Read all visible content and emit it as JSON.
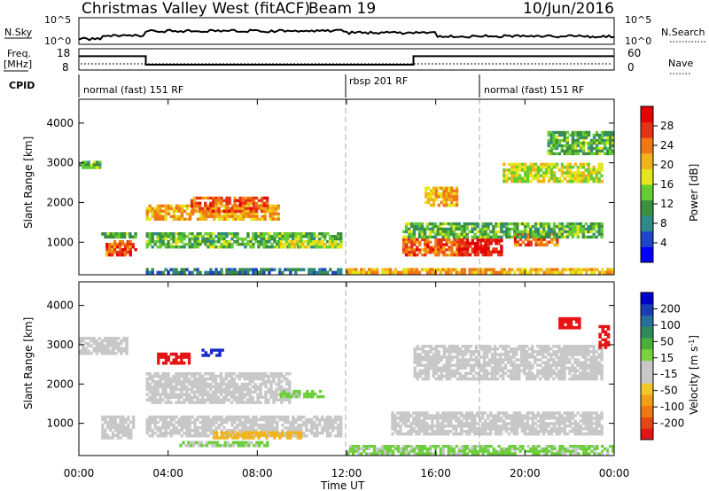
{
  "header": {
    "title": "Christmas Valley West (fitACF)",
    "beam": "Beam 19",
    "date": "10/Jun/2016"
  },
  "strip_labels": {
    "nsky": "N.Sky",
    "nsky_ticks": [
      "10^5",
      "10^0"
    ],
    "nsearch": "N.Search",
    "nsearch_ticks": [
      "10^5",
      "10^0"
    ],
    "freq": "Freq.",
    "freq_unit": "[MHz]",
    "freq_ticks": [
      "18",
      "8"
    ],
    "nave": "Nave",
    "nave_ticks": [
      "60",
      "0"
    ],
    "cpid": "CPID"
  },
  "cpid_segments": [
    {
      "label": "normal (fast) 151 RF",
      "start_hr": 0
    },
    {
      "label": "rbsp 201 RF",
      "start_hr": 12
    },
    {
      "label": "normal (fast) 151 RF",
      "start_hr": 18
    }
  ],
  "axes": {
    "xlabel": "Time UT",
    "ylabel": "Slant Range [km]",
    "x_ticks": [
      "00:00",
      "04:00",
      "08:00",
      "12:00",
      "16:00",
      "20:00",
      "00:00"
    ],
    "y_ticks": [
      "1000",
      "2000",
      "3000",
      "4000"
    ]
  },
  "colorbars": {
    "power": {
      "label": "Power [dB]",
      "ticks": [
        "4",
        "8",
        "12",
        "16",
        "20",
        "24",
        "28"
      ],
      "colors": [
        "#0000ff",
        "#1e46c8",
        "#2f8a8a",
        "#3c8f3c",
        "#66cc33",
        "#e6e619",
        "#f0b419",
        "#f07814",
        "#e63214",
        "#e60000"
      ]
    },
    "velocity": {
      "label": "Velocity [m s",
      "label_sup": "-1",
      "label_end": "]",
      "ticks": [
        "200",
        "100",
        "50",
        "15",
        "-15",
        "-50",
        "-100",
        "-200"
      ],
      "colors": [
        "#0000cc",
        "#1a3cb4",
        "#2b6e9e",
        "#2f8a5a",
        "#4caf3c",
        "#7ad23c",
        "#c8c8c8",
        "#c8c8c8",
        "#f0c828",
        "#f0a014",
        "#f07814",
        "#e64614",
        "#e61414"
      ]
    }
  },
  "chart_data": {
    "type": "heatmap",
    "x_range_hours": [
      0,
      24
    ],
    "y_range_km": [
      180,
      4600
    ],
    "gridlines": "vertical dashed at 12:00 and 18:00 (CPID changes)",
    "frequency_MHz": [
      {
        "start_hr": 0,
        "end_hr": 3,
        "value": 14.5
      },
      {
        "start_hr": 3,
        "end_hr": 15,
        "value": 10.5
      },
      {
        "start_hr": 15,
        "end_hr": 24,
        "value": 14.5
      }
    ],
    "power_regions": [
      {
        "t0": 0.0,
        "t1": 1.0,
        "r0": 2850,
        "r1": 3050,
        "level": 12
      },
      {
        "t0": 1.0,
        "t1": 2.6,
        "r0": 1100,
        "r1": 1250,
        "level": 12
      },
      {
        "t0": 1.2,
        "t1": 2.6,
        "r0": 650,
        "r1": 1050,
        "level": 24
      },
      {
        "t0": 3.0,
        "t1": 9.0,
        "r0": 1550,
        "r1": 1950,
        "level": 20
      },
      {
        "t0": 5.0,
        "t1": 8.5,
        "r0": 1750,
        "r1": 2150,
        "level": 24
      },
      {
        "t0": 3.0,
        "t1": 11.8,
        "r0": 850,
        "r1": 1250,
        "level": 12
      },
      {
        "t0": 9.0,
        "t1": 11.8,
        "r0": 850,
        "r1": 1050,
        "level": 16
      },
      {
        "t0": 3.0,
        "t1": 11.8,
        "r0": 200,
        "r1": 350,
        "level": 8
      },
      {
        "t0": 12.0,
        "t1": 24.0,
        "r0": 200,
        "r1": 350,
        "level": 20
      },
      {
        "t0": 14.5,
        "t1": 17.5,
        "r0": 650,
        "r1": 1100,
        "level": 24
      },
      {
        "t0": 17.0,
        "t1": 19.0,
        "r0": 650,
        "r1": 1150,
        "level": 28
      },
      {
        "t0": 19.5,
        "t1": 21.5,
        "r0": 900,
        "r1": 1250,
        "level": 24
      },
      {
        "t0": 14.5,
        "t1": 23.5,
        "r0": 1100,
        "r1": 1500,
        "level": 12
      },
      {
        "t0": 15.5,
        "t1": 17.0,
        "r0": 1900,
        "r1": 2400,
        "level": 20
      },
      {
        "t0": 19.0,
        "t1": 23.5,
        "r0": 2500,
        "r1": 3000,
        "level": 16
      },
      {
        "t0": 21.0,
        "t1": 24.0,
        "r0": 3200,
        "r1": 3800,
        "level": 12
      }
    ],
    "velocity_regions": [
      {
        "t0": 0.0,
        "t1": 2.2,
        "r0": 2750,
        "r1": 3200,
        "level": 0
      },
      {
        "t0": 1.0,
        "t1": 2.5,
        "r0": 600,
        "r1": 1200,
        "level": 0
      },
      {
        "t0": 3.5,
        "t1": 5.0,
        "r0": 2500,
        "r1": 2800,
        "level": -200
      },
      {
        "t0": 5.5,
        "t1": 6.5,
        "r0": 2700,
        "r1": 2900,
        "level": 200
      },
      {
        "t0": 3.0,
        "t1": 9.5,
        "r0": 1500,
        "r1": 2300,
        "level": 0
      },
      {
        "t0": 9.0,
        "t1": 11.0,
        "r0": 1650,
        "r1": 1850,
        "level": 30
      },
      {
        "t0": 3.0,
        "t1": 11.8,
        "r0": 650,
        "r1": 1200,
        "level": 0
      },
      {
        "t0": 4.5,
        "t1": 8.5,
        "r0": 400,
        "r1": 550,
        "level": 30
      },
      {
        "t0": 6.0,
        "t1": 10.0,
        "r0": 600,
        "r1": 800,
        "level": -50
      },
      {
        "t0": 12.0,
        "t1": 24.0,
        "r0": 200,
        "r1": 450,
        "level": 30
      },
      {
        "t0": 14.0,
        "t1": 23.5,
        "r0": 700,
        "r1": 1300,
        "level": 0
      },
      {
        "t0": 15.0,
        "t1": 23.5,
        "r0": 2100,
        "r1": 3000,
        "level": 0
      },
      {
        "t0": 21.5,
        "t1": 22.5,
        "r0": 3400,
        "r1": 3700,
        "level": -200
      },
      {
        "t0": 23.3,
        "t1": 23.8,
        "r0": 2900,
        "r1": 3500,
        "level": -200
      }
    ]
  }
}
